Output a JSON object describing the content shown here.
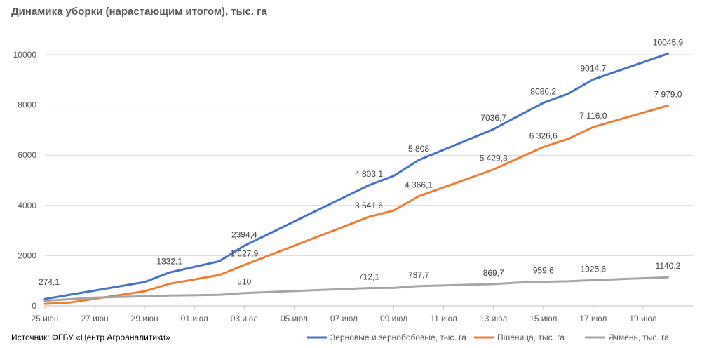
{
  "title": "Динамика уборки (нарастающим итогом), тыс. га",
  "source": "Источник: ФГБУ «Центр Агроаналитики»",
  "colors": {
    "series1": "#4472C4",
    "series2": "#ED7D31",
    "series3": "#A5A5A5",
    "grid": "#D9D9D9",
    "axis": "#BFBFBF"
  },
  "chart_data": {
    "type": "line",
    "ylim": [
      0,
      10000
    ],
    "yticks": [
      0,
      2000,
      4000,
      6000,
      8000,
      10000
    ],
    "xlim": [
      "2024-06-25",
      "2024-07-21"
    ],
    "xticks": [
      {
        "date": "2024-06-25",
        "label": "25.июн"
      },
      {
        "date": "2024-06-27",
        "label": "27.июн"
      },
      {
        "date": "2024-06-29",
        "label": "29.июн"
      },
      {
        "date": "2024-07-01",
        "label": "01.июл"
      },
      {
        "date": "2024-07-03",
        "label": "03.июл"
      },
      {
        "date": "2024-07-05",
        "label": "05.июл"
      },
      {
        "date": "2024-07-07",
        "label": "07.июл"
      },
      {
        "date": "2024-07-09",
        "label": "09.июл"
      },
      {
        "date": "2024-07-11",
        "label": "11.июл"
      },
      {
        "date": "2024-07-13",
        "label": "13.июл"
      },
      {
        "date": "2024-07-15",
        "label": "15.июл"
      },
      {
        "date": "2024-07-17",
        "label": "17.июл"
      },
      {
        "date": "2024-07-19",
        "label": "19.июл"
      }
    ],
    "grid": true,
    "legend_position": "bottom-right",
    "series": [
      {
        "name": "Зерновые и зернобобовые, тыс. га",
        "color": "#4472C4",
        "points": [
          {
            "date": "2024-06-25",
            "y": 274.1,
            "label": "274,1"
          },
          {
            "date": "2024-06-29",
            "y": 950
          },
          {
            "date": "2024-06-30",
            "y": 1332.1,
            "label": "1332,1"
          },
          {
            "date": "2024-07-02",
            "y": 1780
          },
          {
            "date": "2024-07-03",
            "y": 2394.4,
            "label": "2394,4"
          },
          {
            "date": "2024-07-08",
            "y": 4803.1,
            "label": "4 803,1"
          },
          {
            "date": "2024-07-09",
            "y": 5180
          },
          {
            "date": "2024-07-10",
            "y": 5808,
            "label": "5 808"
          },
          {
            "date": "2024-07-13",
            "y": 7036.7,
            "label": "7036,7"
          },
          {
            "date": "2024-07-15",
            "y": 8086.2,
            "label": "8086,2"
          },
          {
            "date": "2024-07-16",
            "y": 8450
          },
          {
            "date": "2024-07-17",
            "y": 9014.7,
            "label": "9014,7"
          },
          {
            "date": "2024-07-20",
            "y": 10045.9,
            "label": "10045,9"
          }
        ]
      },
      {
        "name": "Пшеница, тыс. га",
        "color": "#ED7D31",
        "points": [
          {
            "date": "2024-06-25",
            "y": 80
          },
          {
            "date": "2024-06-26",
            "y": 130
          },
          {
            "date": "2024-06-29",
            "y": 580
          },
          {
            "date": "2024-06-30",
            "y": 880
          },
          {
            "date": "2024-07-02",
            "y": 1230
          },
          {
            "date": "2024-07-03",
            "y": 1627.9,
            "label": "1 627,9"
          },
          {
            "date": "2024-07-08",
            "y": 3541.6,
            "label": "3 541,6"
          },
          {
            "date": "2024-07-09",
            "y": 3800
          },
          {
            "date": "2024-07-10",
            "y": 4366.1,
            "label": "4 366,1"
          },
          {
            "date": "2024-07-13",
            "y": 5429.3,
            "label": "5 429,3"
          },
          {
            "date": "2024-07-15",
            "y": 6326.6,
            "label": "6 326,6"
          },
          {
            "date": "2024-07-16",
            "y": 6650
          },
          {
            "date": "2024-07-17",
            "y": 7116.0,
            "label": "7 116,0"
          },
          {
            "date": "2024-07-20",
            "y": 7979.0,
            "label": "7 979,0"
          }
        ]
      },
      {
        "name": "Ячмень, тыс. га",
        "color": "#A5A5A5",
        "points": [
          {
            "date": "2024-06-25",
            "y": 200
          },
          {
            "date": "2024-06-27",
            "y": 330
          },
          {
            "date": "2024-06-30",
            "y": 410
          },
          {
            "date": "2024-07-02",
            "y": 440
          },
          {
            "date": "2024-07-03",
            "y": 510,
            "label": "510"
          },
          {
            "date": "2024-07-08",
            "y": 712.1,
            "label": "712,1"
          },
          {
            "date": "2024-07-09",
            "y": 715
          },
          {
            "date": "2024-07-10",
            "y": 787.7,
            "label": "787,7"
          },
          {
            "date": "2024-07-13",
            "y": 869.7,
            "label": "869,7"
          },
          {
            "date": "2024-07-14",
            "y": 930
          },
          {
            "date": "2024-07-15",
            "y": 959.6,
            "label": "959,6"
          },
          {
            "date": "2024-07-16",
            "y": 980
          },
          {
            "date": "2024-07-17",
            "y": 1025.6,
            "label": "1025,6"
          },
          {
            "date": "2024-07-20",
            "y": 1140.2,
            "label": "1140,2"
          }
        ]
      }
    ]
  }
}
